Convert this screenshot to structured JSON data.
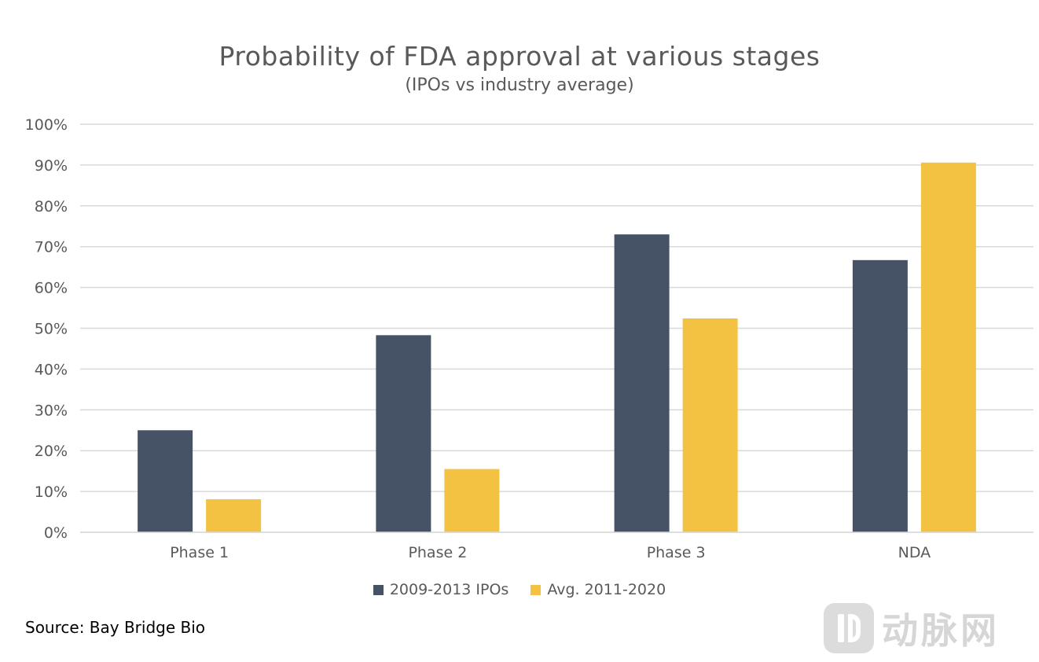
{
  "chart_data": {
    "type": "bar",
    "title": "Probability of FDA approval at various stages",
    "subtitle": "(IPOs vs industry average)",
    "categories": [
      "Phase 1",
      "Phase 2",
      "Phase 3",
      "NDA"
    ],
    "series": [
      {
        "name": "2009-2013 IPOs",
        "values": [
          25,
          48.3,
          73,
          66.7
        ],
        "color": "#465366"
      },
      {
        "name": "Avg. 2011-2020",
        "values": [
          8.1,
          15.5,
          52.4,
          90.6
        ],
        "color": "#F4C242"
      }
    ],
    "ylim": [
      0,
      100
    ],
    "yticks": [
      0,
      10,
      20,
      30,
      40,
      50,
      60,
      70,
      80,
      90,
      100
    ],
    "ytick_labels": [
      "0%",
      "10%",
      "20%",
      "30%",
      "40%",
      "50%",
      "60%",
      "70%",
      "80%",
      "90%",
      "100%"
    ],
    "grid": true,
    "legend_position": "bottom",
    "xlabel": "",
    "ylabel": ""
  },
  "source": "Source: Bay Bridge Bio",
  "watermark": {
    "text": "动脉网",
    "icon": "vb-logo-icon"
  }
}
